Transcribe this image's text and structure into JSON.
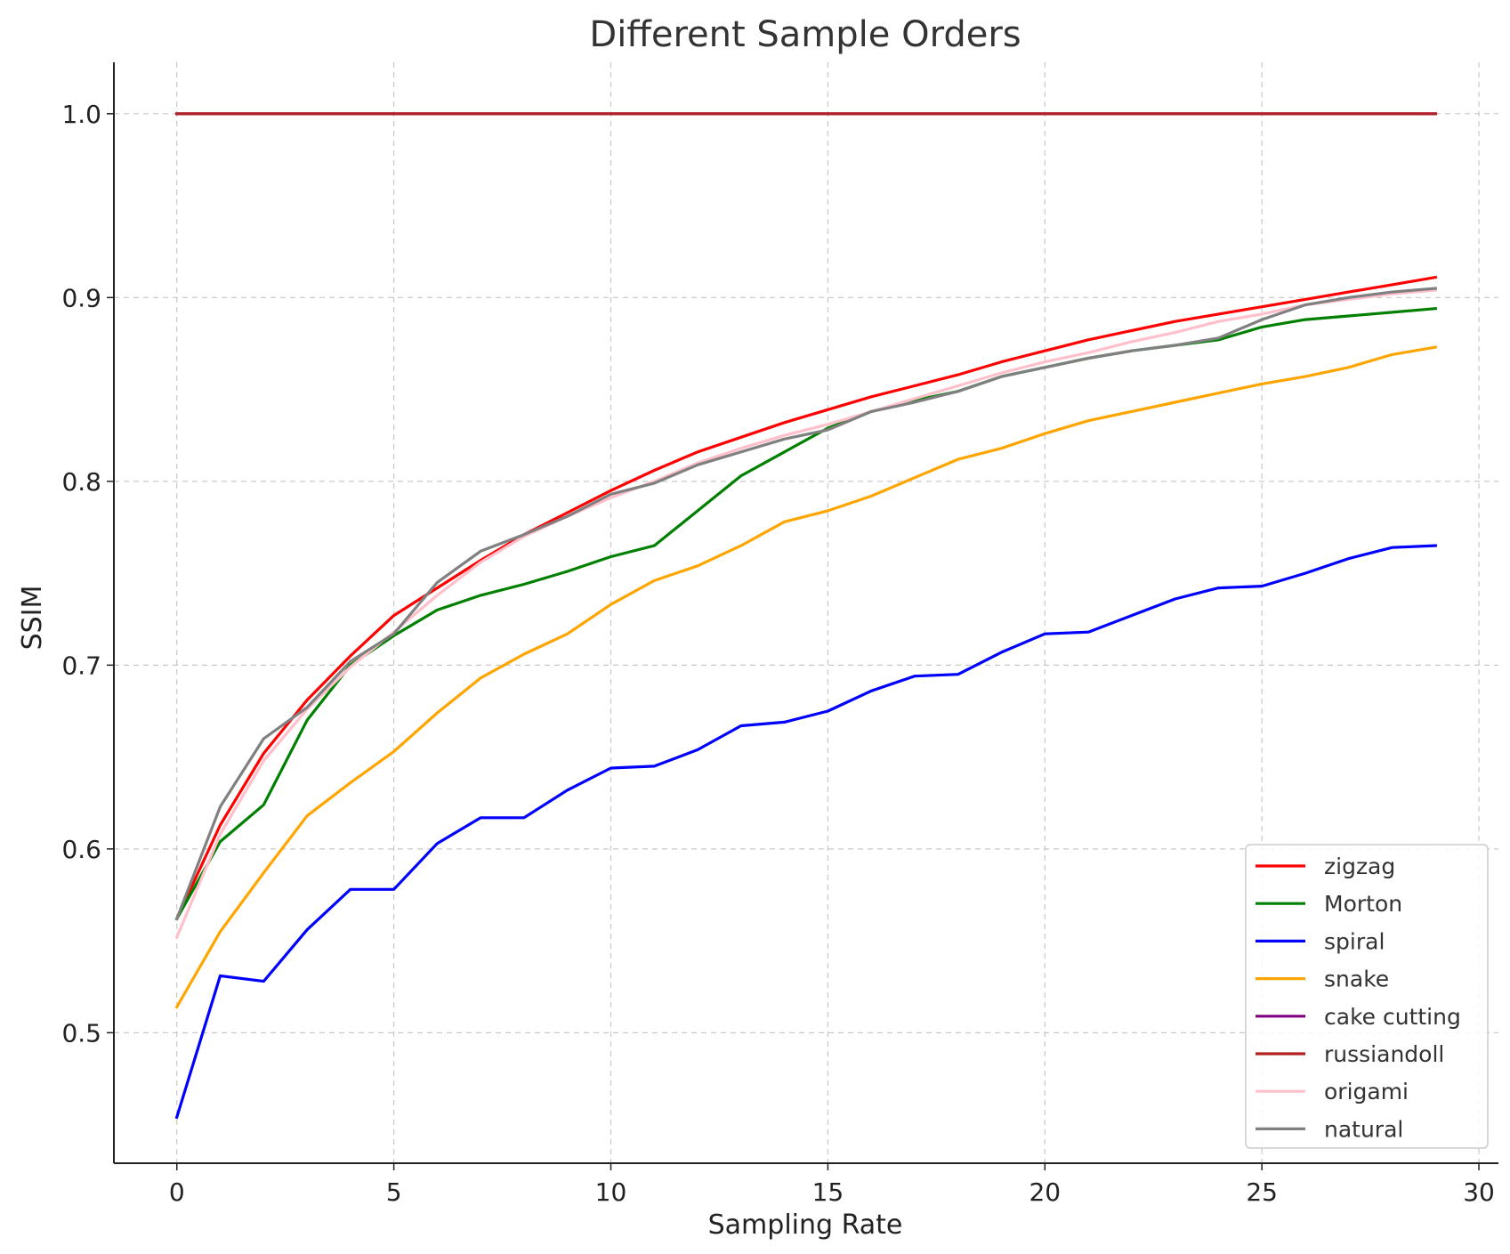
{
  "chart_data": {
    "type": "line",
    "title": "Different Sample Orders",
    "xlabel": "Sampling Rate",
    "ylabel": "SSIM",
    "xlim": [
      -1.45,
      30.45
    ],
    "ylim": [
      0.429,
      1.028
    ],
    "xticks": [
      0,
      5,
      10,
      15,
      20,
      25,
      30
    ],
    "xtick_labels": [
      "0",
      "5",
      "10",
      "15",
      "20",
      "25",
      "30"
    ],
    "yticks": [
      0.5,
      0.6,
      0.7,
      0.8,
      0.9,
      1.0
    ],
    "ytick_labels": [
      "0.5",
      "0.6",
      "0.7",
      "0.8",
      "0.9",
      "1.0"
    ],
    "grid": true,
    "legend_position": "lower-right",
    "x": [
      0,
      1,
      2,
      3,
      4,
      5,
      6,
      7,
      8,
      9,
      10,
      11,
      12,
      13,
      14,
      15,
      16,
      17,
      18,
      19,
      20,
      21,
      22,
      23,
      24,
      25,
      26,
      27,
      28,
      29
    ],
    "series": [
      {
        "name": "zigzag",
        "color": "#ff0000",
        "values": [
          0.562,
          0.613,
          0.652,
          0.681,
          0.705,
          0.727,
          0.742,
          0.757,
          0.771,
          0.783,
          0.795,
          0.806,
          0.816,
          0.824,
          0.832,
          0.839,
          0.846,
          0.852,
          0.858,
          0.865,
          0.871,
          0.877,
          0.882,
          0.887,
          0.891,
          0.895,
          0.899,
          0.903,
          0.907,
          0.911
        ]
      },
      {
        "name": "Morton",
        "color": "#008000",
        "values": [
          0.562,
          0.604,
          0.624,
          0.67,
          0.7,
          0.716,
          0.73,
          0.738,
          0.744,
          0.751,
          0.759,
          0.765,
          0.784,
          0.803,
          0.816,
          0.829,
          0.838,
          0.844,
          0.849,
          0.857,
          0.862,
          0.867,
          0.871,
          0.874,
          0.877,
          0.884,
          0.888,
          0.89,
          0.892,
          0.894
        ]
      },
      {
        "name": "spiral",
        "color": "#0000ff",
        "values": [
          0.454,
          0.531,
          0.528,
          0.556,
          0.578,
          0.578,
          0.603,
          0.617,
          0.617,
          0.632,
          0.644,
          0.645,
          0.654,
          0.667,
          0.669,
          0.675,
          0.686,
          0.694,
          0.695,
          0.707,
          0.717,
          0.718,
          0.727,
          0.736,
          0.742,
          0.743,
          0.75,
          0.758,
          0.764,
          0.765
        ]
      },
      {
        "name": "snake",
        "color": "#ffa500",
        "values": [
          0.514,
          0.555,
          0.587,
          0.618,
          0.636,
          0.653,
          0.674,
          0.693,
          0.706,
          0.717,
          0.733,
          0.746,
          0.754,
          0.765,
          0.778,
          0.784,
          0.792,
          0.802,
          0.812,
          0.818,
          0.826,
          0.833,
          0.838,
          0.843,
          0.848,
          0.853,
          0.857,
          0.862,
          0.869,
          0.873
        ]
      },
      {
        "name": "cake cutting",
        "color": "#800080",
        "values": [
          1.0,
          1.0,
          1.0,
          1.0,
          1.0,
          1.0,
          1.0,
          1.0,
          1.0,
          1.0,
          1.0,
          1.0,
          1.0,
          1.0,
          1.0,
          1.0,
          1.0,
          1.0,
          1.0,
          1.0,
          1.0,
          1.0,
          1.0,
          1.0,
          1.0,
          1.0,
          1.0,
          1.0,
          1.0,
          1.0
        ]
      },
      {
        "name": "russiandoll",
        "color": "#b22222",
        "values": [
          1.0,
          1.0,
          1.0,
          1.0,
          1.0,
          1.0,
          1.0,
          1.0,
          1.0,
          1.0,
          1.0,
          1.0,
          1.0,
          1.0,
          1.0,
          1.0,
          1.0,
          1.0,
          1.0,
          1.0,
          1.0,
          1.0,
          1.0,
          1.0,
          1.0,
          1.0,
          1.0,
          1.0,
          1.0,
          1.0
        ]
      },
      {
        "name": "origami",
        "color": "#ffc0cb",
        "values": [
          0.552,
          0.608,
          0.648,
          0.676,
          0.699,
          0.718,
          0.738,
          0.756,
          0.77,
          0.781,
          0.791,
          0.8,
          0.81,
          0.818,
          0.825,
          0.831,
          0.838,
          0.845,
          0.852,
          0.859,
          0.865,
          0.87,
          0.876,
          0.881,
          0.887,
          0.891,
          0.896,
          0.899,
          0.902,
          0.904
        ]
      },
      {
        "name": "natural",
        "color": "#808080",
        "values": [
          0.562,
          0.623,
          0.66,
          0.677,
          0.702,
          0.717,
          0.745,
          0.762,
          0.771,
          0.781,
          0.793,
          0.799,
          0.809,
          0.816,
          0.823,
          0.828,
          0.838,
          0.843,
          0.849,
          0.857,
          0.862,
          0.867,
          0.871,
          0.874,
          0.878,
          0.888,
          0.896,
          0.9,
          0.903,
          0.905
        ]
      }
    ]
  }
}
